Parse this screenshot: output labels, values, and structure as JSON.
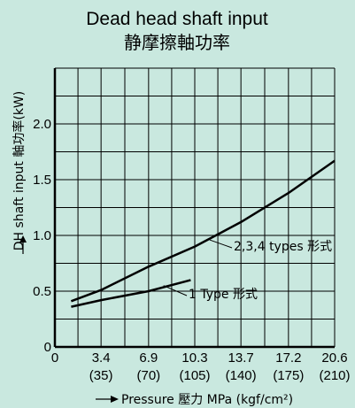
{
  "chart_data": {
    "type": "line",
    "title": "Dead head shaft input",
    "subtitle": "静摩擦軸功率",
    "xlabel": "Pressure 壓力 MPa (kgf/cm²)",
    "ylabel": "DH shaft input 軸功率(kW)",
    "xlim": [
      0,
      20.6
    ],
    "ylim": [
      0,
      2.5
    ],
    "x_ticks": [
      {
        "value": 0,
        "label": "0",
        "sublabel": ""
      },
      {
        "value": 3.4,
        "label": "3.4",
        "sublabel": "(35)"
      },
      {
        "value": 6.9,
        "label": "6.9",
        "sublabel": "(70)"
      },
      {
        "value": 10.3,
        "label": "10.3",
        "sublabel": "(105)"
      },
      {
        "value": 13.7,
        "label": "13.7",
        "sublabel": "(140)"
      },
      {
        "value": 17.2,
        "label": "17.2",
        "sublabel": "(175)"
      },
      {
        "value": 20.6,
        "label": "20.6",
        "sublabel": "(210)"
      }
    ],
    "y_ticks": [
      {
        "value": 0,
        "label": "0"
      },
      {
        "value": 0.5,
        "label": "0.5"
      },
      {
        "value": 1.0,
        "label": "1.0"
      },
      {
        "value": 1.5,
        "label": "1.5"
      },
      {
        "value": 2.0,
        "label": "2.0"
      }
    ],
    "grid": true,
    "series": [
      {
        "name": "2,3,4 types 形式",
        "x": [
          1.2,
          3.4,
          6.9,
          10.3,
          13.7,
          17.2,
          20.6
        ],
        "y": [
          0.41,
          0.51,
          0.72,
          0.9,
          1.12,
          1.38,
          1.67
        ]
      },
      {
        "name": "1 Type 形式",
        "x": [
          1.2,
          3.4,
          6.9,
          10.0
        ],
        "y": [
          0.36,
          0.42,
          0.5,
          0.6
        ]
      }
    ],
    "colors": {
      "background": "#c9e8df",
      "line": "#000000",
      "grid": "#000000"
    }
  }
}
